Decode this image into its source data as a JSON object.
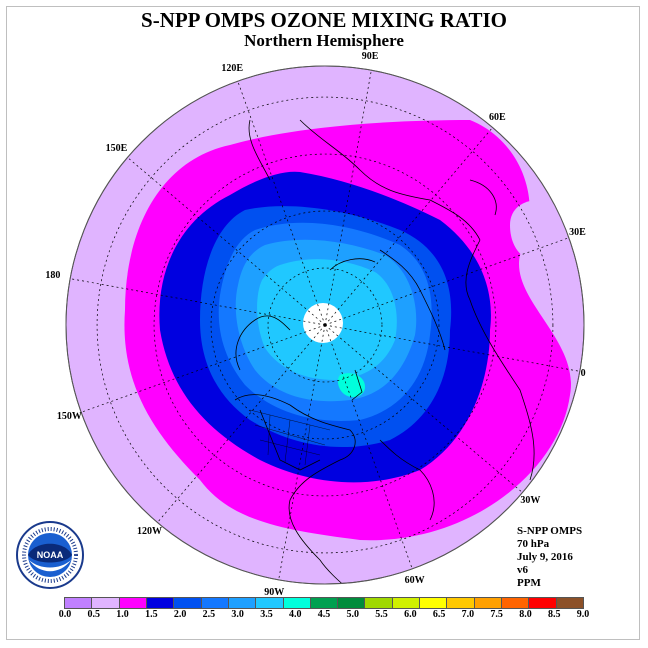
{
  "title": "S-NPP OMPS OZONE MIXING RATIO",
  "subtitle": "Northern Hemisphere",
  "info": {
    "product": "S-NPP OMPS",
    "level": "70 hPa",
    "date": "July 9, 2016",
    "version": "v6",
    "units": "PPM"
  },
  "longitude_labels": [
    {
      "text": "90E",
      "angle": 90
    },
    {
      "text": "60E",
      "angle": 60
    },
    {
      "text": "30E",
      "angle": 30
    },
    {
      "text": "0",
      "angle": 0
    },
    {
      "text": "30W",
      "angle": -30
    },
    {
      "text": "60W",
      "angle": -60
    },
    {
      "text": "90W",
      "angle": -90
    },
    {
      "text": "120W",
      "angle": -120
    },
    {
      "text": "150W",
      "angle": -150
    },
    {
      "text": "180",
      "angle": 180
    },
    {
      "text": "150E",
      "angle": 150
    },
    {
      "text": "120E",
      "angle": 120
    }
  ],
  "colorbar": {
    "ticks": [
      "0.0",
      "0.5",
      "1.0",
      "1.5",
      "2.0",
      "2.5",
      "3.0",
      "3.5",
      "4.0",
      "4.5",
      "5.0",
      "5.5",
      "6.0",
      "6.5",
      "7.0",
      "7.5",
      "8.0",
      "8.5",
      "9.0"
    ],
    "colors": [
      "#c080ff",
      "#e0b4ff",
      "#ff00ff",
      "#0000e0",
      "#0050f0",
      "#1478ff",
      "#1ea0ff",
      "#20c8ff",
      "#00ffdc",
      "#00a050",
      "#008c3c",
      "#a0d800",
      "#d0f000",
      "#ffff00",
      "#ffc800",
      "#ffa000",
      "#ff6400",
      "#ff0000",
      "#8c5028"
    ]
  },
  "logo": {
    "name": "NOAA"
  }
}
